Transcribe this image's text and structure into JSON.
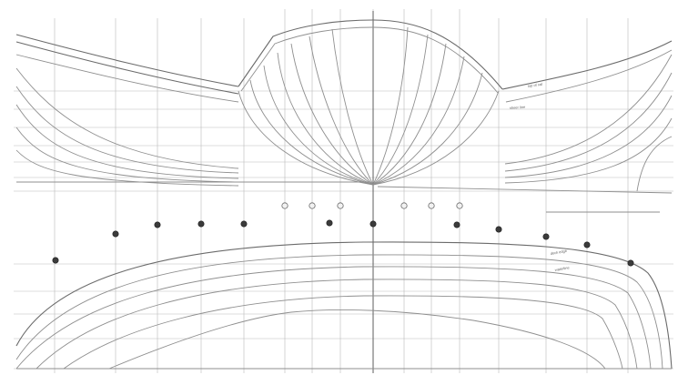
{
  "drawing": {
    "title": "",
    "line_labels": [
      "top of rail",
      "sheer line",
      "deck edge",
      "waterline"
    ],
    "colors": {
      "paper": "#ffffff",
      "grid": "#b9b9b9",
      "line": "#8f8f8f",
      "marker_dark": "#3b3b3b",
      "marker_light": "#f2f2f2"
    }
  }
}
